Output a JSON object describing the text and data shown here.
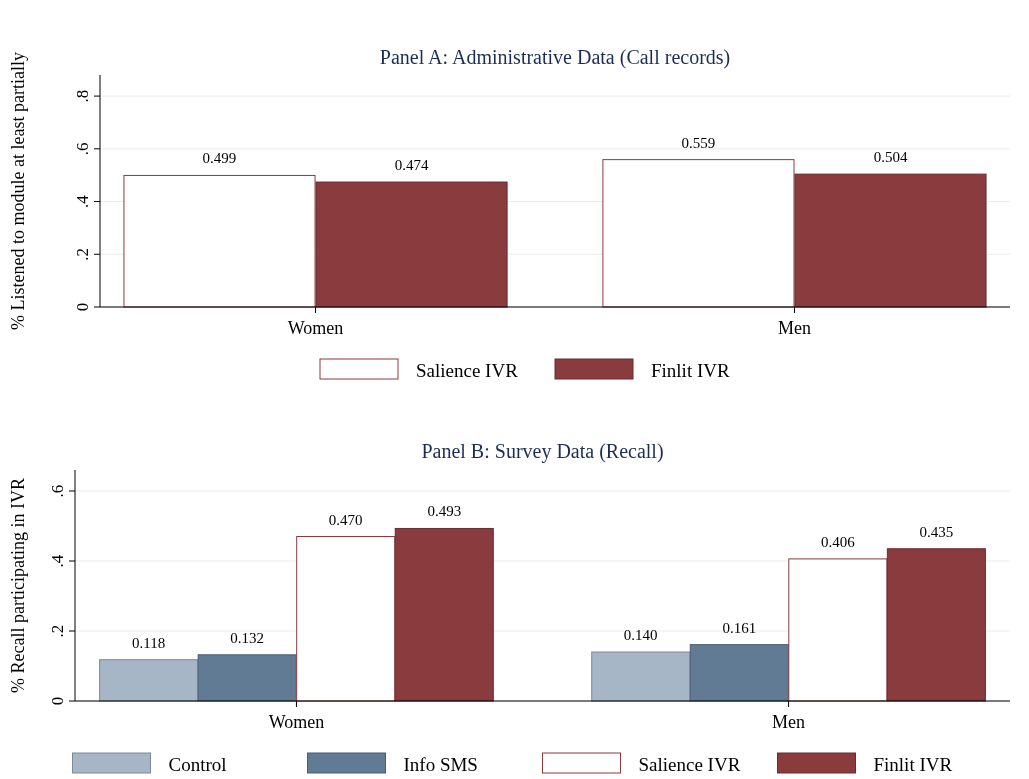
{
  "chart_data": [
    {
      "type": "bar",
      "title": "Panel A: Administrative Data (Call records)",
      "ylabel": "% Listened to module at least partially",
      "categories": [
        "Women",
        "Men"
      ],
      "ylim": [
        0,
        0.88
      ],
      "yticks": [
        0,
        {
          "value": 0.2,
          "label": ".2"
        },
        {
          "value": 0.4,
          "label": ".4"
        },
        {
          "value": 0.6,
          "label": ".6"
        },
        {
          "value": 0.8,
          "label": ".8"
        }
      ],
      "grid": "y",
      "legend": "bottom",
      "series": [
        {
          "name": "Salience IVR",
          "color": "#ffffff",
          "values": [
            0.499,
            0.559
          ],
          "value_labels": [
            "0.499",
            "0.559"
          ]
        },
        {
          "name": "Finlit IVR",
          "color": "#893b3e",
          "values": [
            0.474,
            0.504
          ],
          "value_labels": [
            "0.474",
            "0.504"
          ]
        }
      ]
    },
    {
      "type": "bar",
      "title": "Panel B: Survey Data (Recall)",
      "ylabel": "% Recall participating in IVR",
      "categories": [
        "Women",
        "Men"
      ],
      "ylim": [
        0,
        0.66
      ],
      "yticks": [
        0,
        {
          "value": 0.2,
          "label": ".2"
        },
        {
          "value": 0.4,
          "label": ".4"
        },
        {
          "value": 0.6,
          "label": ".6"
        }
      ],
      "grid": "y",
      "legend": "bottom",
      "series": [
        {
          "name": "Control",
          "color": "#a6b6c6",
          "values": [
            0.118,
            0.14
          ],
          "value_labels": [
            "0.118",
            "0.140"
          ]
        },
        {
          "name": "Info SMS",
          "color": "#627b95",
          "values": [
            0.132,
            0.161
          ],
          "value_labels": [
            "0.132",
            "0.161"
          ]
        },
        {
          "name": "Salience IVR",
          "color": "#ffffff",
          "values": [
            0.47,
            0.406
          ],
          "value_labels": [
            "0.470",
            "0.406"
          ]
        },
        {
          "name": "Finlit IVR",
          "color": "#893b3e",
          "values": [
            0.493,
            0.435
          ],
          "value_labels": [
            "0.493",
            "0.435"
          ]
        }
      ]
    }
  ]
}
